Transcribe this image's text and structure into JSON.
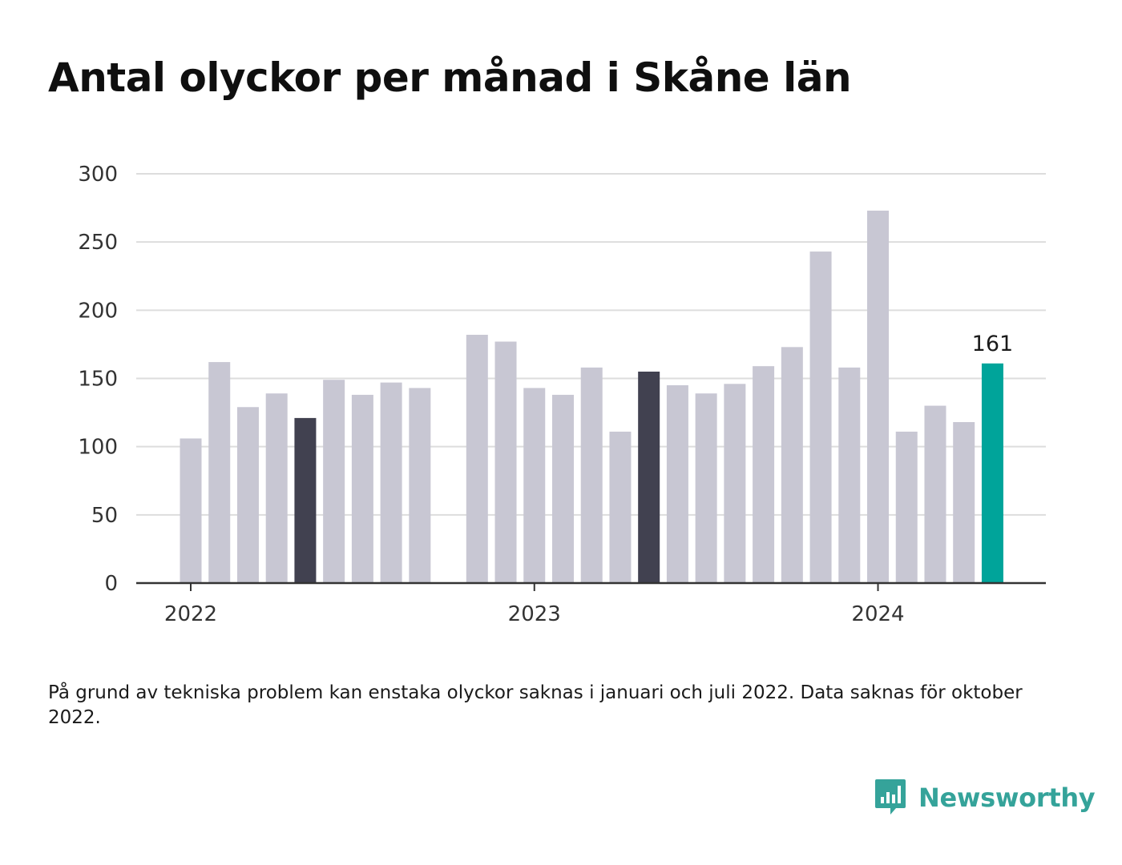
{
  "title": "Antal olyckor per månad i Skåne län",
  "footnote": "På grund av tekniska problem kan enstaka olyckor saknas i januari och juli 2022. Data saknas för oktober 2022.",
  "brand": {
    "name": "Newsworthy",
    "icon": "newsworthy-logo-icon",
    "color": "#35a39a"
  },
  "chart_data": {
    "type": "bar",
    "y_ticks": [
      0,
      50,
      100,
      150,
      200,
      250,
      300
    ],
    "ylim": [
      0,
      300
    ],
    "x_labels": [
      {
        "text": "2022",
        "month_index": 0
      },
      {
        "text": "2023",
        "month_index": 12
      },
      {
        "text": "2024",
        "month_index": 24
      }
    ],
    "months": [
      "2022-01",
      "2022-02",
      "2022-03",
      "2022-04",
      "2022-05",
      "2022-06",
      "2022-07",
      "2022-08",
      "2022-09",
      "2022-10",
      "2022-11",
      "2022-12",
      "2023-01",
      "2023-02",
      "2023-03",
      "2023-04",
      "2023-05",
      "2023-06",
      "2023-07",
      "2023-08",
      "2023-09",
      "2023-10",
      "2023-11",
      "2023-12",
      "2024-01",
      "2024-02",
      "2024-03",
      "2024-04",
      "2024-05"
    ],
    "values": [
      106,
      162,
      129,
      139,
      121,
      149,
      138,
      147,
      143,
      null,
      182,
      177,
      143,
      138,
      158,
      111,
      155,
      145,
      139,
      146,
      159,
      173,
      243,
      158,
      273,
      111,
      130,
      118,
      161
    ],
    "highlight_dark_indices": [
      4,
      16
    ],
    "highlight_current_index": 28,
    "value_label": {
      "index": 28,
      "text": "161"
    },
    "colors": {
      "bar": "#c8c7d3",
      "dark": "#414150",
      "current": "#00a49a",
      "grid": "#dddddd",
      "axis": "#333333"
    },
    "grid": true
  }
}
